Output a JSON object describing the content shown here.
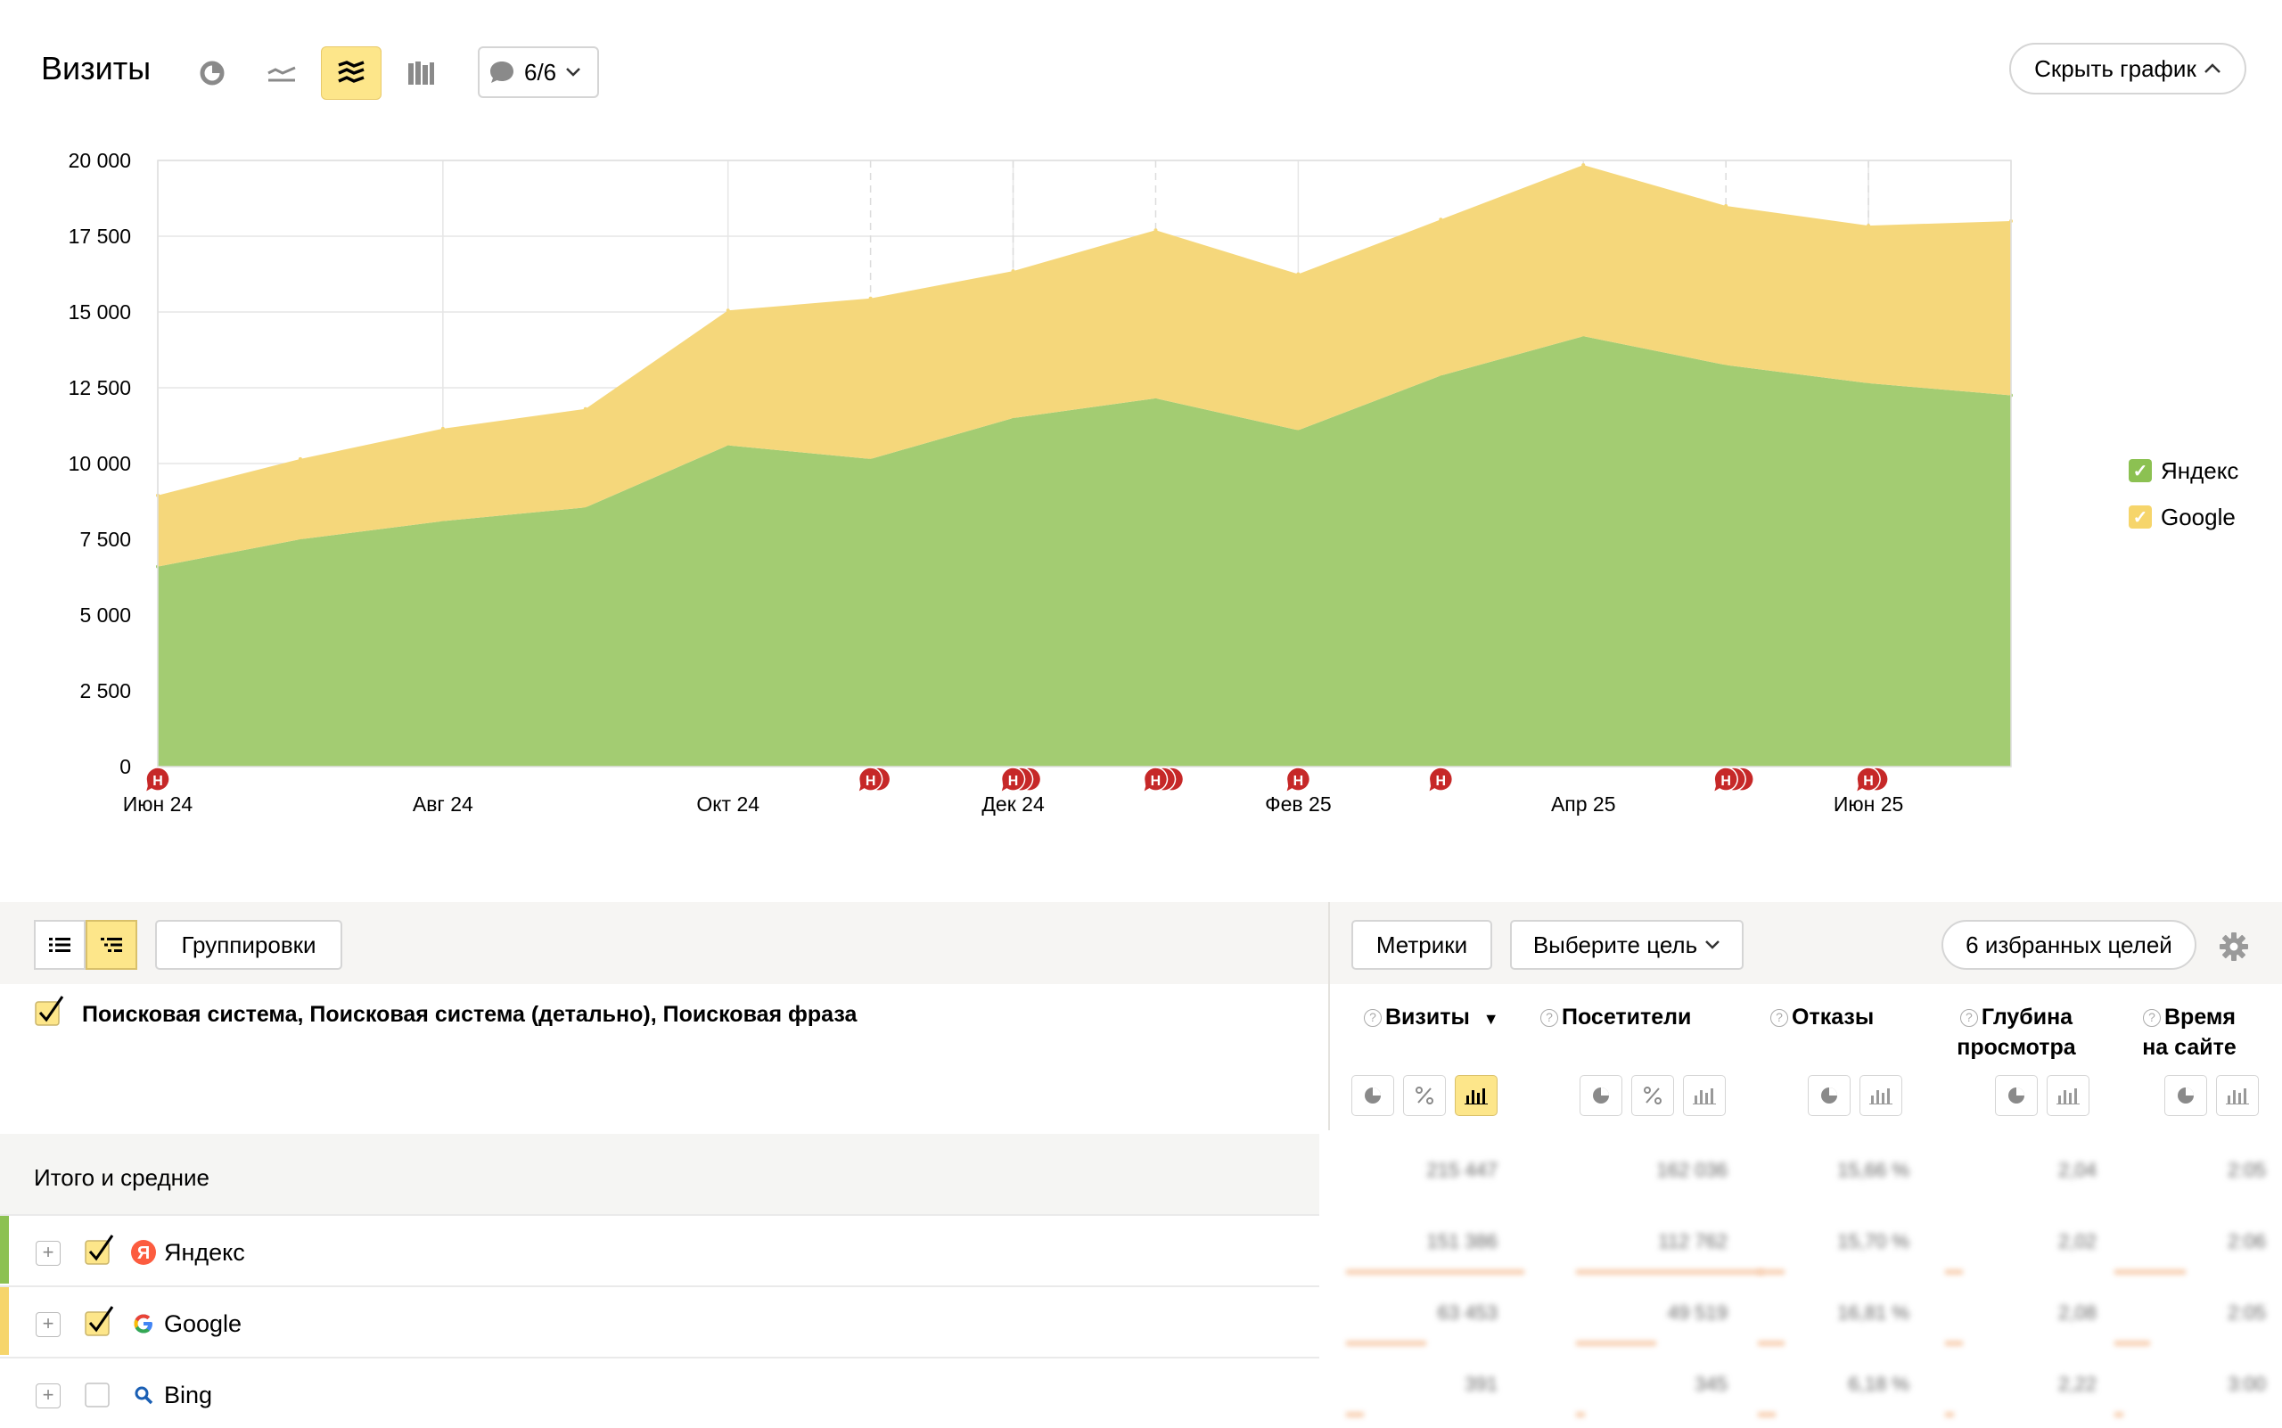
{
  "header": {
    "title": "Визиты",
    "notes_count": "6/6",
    "hide_chart": "Скрыть график"
  },
  "chart_data": {
    "type": "area",
    "stacked": true,
    "x": [
      "Июн 24",
      "Июл 24",
      "Авг 24",
      "Сен 24",
      "Окт 24",
      "Ноя 24",
      "Дек 24",
      "Янв 25",
      "Фев 25",
      "Мар 25",
      "Апр 25",
      "Май 25",
      "Июн 25",
      "Июл 25"
    ],
    "x_tick_labels": [
      "Июн 24",
      "Авг 24",
      "Окт 24",
      "Дек 24",
      "Фев 25",
      "Апр 25",
      "Июн 25"
    ],
    "series": [
      {
        "name": "Яндекс",
        "color": "#a3cc72",
        "values": [
          6600,
          7500,
          8100,
          8550,
          10600,
          10150,
          11500,
          12150,
          11100,
          12900,
          14200,
          13250,
          12650,
          12250
        ]
      },
      {
        "name": "Google",
        "color": "#f5d77b",
        "values": [
          2350,
          2650,
          3050,
          3250,
          4450,
          5300,
          4850,
          5550,
          5150,
          5150,
          5650,
          5250,
          5200,
          5750
        ]
      }
    ],
    "ylim": [
      0,
      20000
    ],
    "y_ticks": [
      "0",
      "2 500",
      "5 000",
      "7 500",
      "10 000",
      "12 500",
      "15 000",
      "17 500",
      "20 000"
    ],
    "annotations": [
      {
        "x": 0,
        "count": 1,
        "label": "Н"
      },
      {
        "x": 5,
        "count": 2,
        "label": "Н"
      },
      {
        "x": 6,
        "count": 3,
        "label": "Н"
      },
      {
        "x": 7,
        "count": 3,
        "label": "Н"
      },
      {
        "x": 8,
        "count": 1,
        "label": "Н"
      },
      {
        "x": 9,
        "count": 1,
        "label": "Н"
      },
      {
        "x": 11,
        "count": 3,
        "label": "Н"
      },
      {
        "x": 12,
        "count": 2,
        "label": "Н"
      }
    ],
    "legend_position": "right",
    "grid": true
  },
  "toolbar": {
    "groupings": "Группировки",
    "metrics": "Метрики",
    "goal_select": "Выберите цель",
    "favorite_goals": "6 избранных целей"
  },
  "table": {
    "dimensions": "Поисковая система, Поисковая система (детально), Поисковая фраза",
    "columns": [
      {
        "line1": "Визиты",
        "line2": "",
        "sorted": "▼"
      },
      {
        "line1": "Посетители",
        "line2": ""
      },
      {
        "line1": "Отказы",
        "line2": ""
      },
      {
        "line1": "Глубина",
        "line2": "просмотра"
      },
      {
        "line1": "Время",
        "line2": "на сайте"
      }
    ],
    "totals_label": "Итого и средние",
    "rows": [
      {
        "label": "Яндекс",
        "checked": true,
        "color": "#8cc152"
      },
      {
        "label": "Google",
        "checked": true,
        "color": "#f6d56b"
      },
      {
        "label": "Bing",
        "checked": false,
        "color": ""
      }
    ],
    "blurred_values": [
      [
        "215 447",
        "162 036",
        "15,66 %",
        "2,04",
        "2:05"
      ],
      [
        "151 386",
        "112 762",
        "15,70 %",
        "2,02",
        "2:06"
      ],
      [
        "63 453",
        "49 519",
        "16,81 %",
        "2,08",
        "2:05"
      ],
      [
        "391",
        "345",
        "6,18 %",
        "2,22",
        "3:00"
      ]
    ]
  }
}
